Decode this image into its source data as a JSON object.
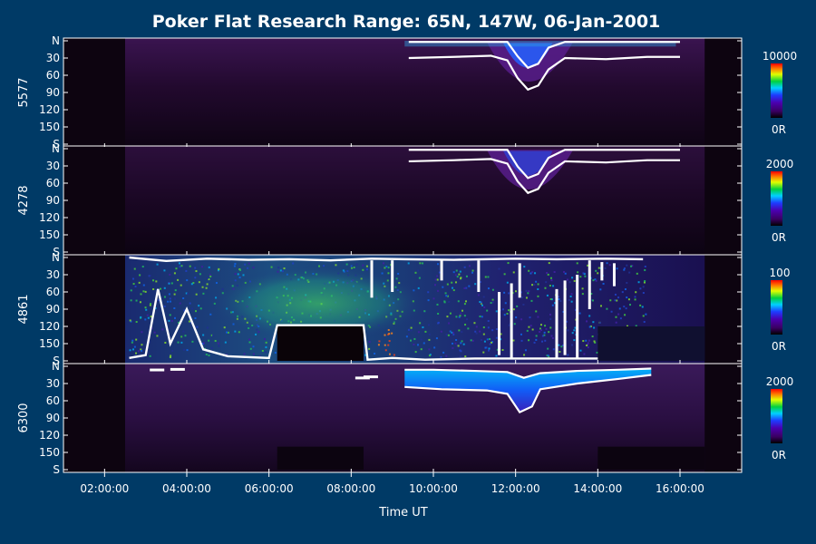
{
  "title": "Poker Flat Research Range: 65N, 147W, 06-Jan-2001",
  "x_axis": {
    "label": "Time UT",
    "ticks": [
      "02:00:00",
      "04:00:00",
      "06:00:00",
      "08:00:00",
      "10:00:00",
      "12:00:00",
      "14:00:00",
      "16:00:00"
    ]
  },
  "colors": {
    "background": "#003a66",
    "panel_dark": "#0d0410",
    "frame": "#ffffff",
    "contour": "#ffffff"
  },
  "chart_data": [
    {
      "type": "heatmap",
      "channel": "5577",
      "ylabel": "5577",
      "y_ticks": [
        "N",
        "30",
        "60",
        "90",
        "120",
        "150",
        "S"
      ],
      "colorbar": {
        "max_label": "10000",
        "min_label": "0R"
      },
      "x_range_hours": [
        1.0,
        17.5
      ],
      "y_range_deg": [
        0,
        180
      ]
    },
    {
      "type": "heatmap",
      "channel": "4278",
      "ylabel": "4278",
      "y_ticks": [
        "N",
        "30",
        "60",
        "90",
        "120",
        "150",
        "S"
      ],
      "colorbar": {
        "max_label": "2000",
        "min_label": "0R"
      },
      "x_range_hours": [
        1.0,
        17.5
      ],
      "y_range_deg": [
        0,
        180
      ]
    },
    {
      "type": "heatmap",
      "channel": "4861",
      "ylabel": "4861",
      "y_ticks": [
        "N",
        "30",
        "60",
        "90",
        "120",
        "150",
        "S"
      ],
      "colorbar": {
        "max_label": "100",
        "min_label": "0R"
      },
      "x_range_hours": [
        1.0,
        17.5
      ],
      "y_range_deg": [
        0,
        180
      ]
    },
    {
      "type": "heatmap",
      "channel": "6300",
      "ylabel": "6300",
      "y_ticks": [
        "N",
        "30",
        "60",
        "90",
        "120",
        "150",
        "S"
      ],
      "colorbar": {
        "max_label": "2000",
        "min_label": "0R"
      },
      "x_range_hours": [
        1.0,
        17.5
      ],
      "y_range_deg": [
        0,
        180
      ]
    }
  ]
}
